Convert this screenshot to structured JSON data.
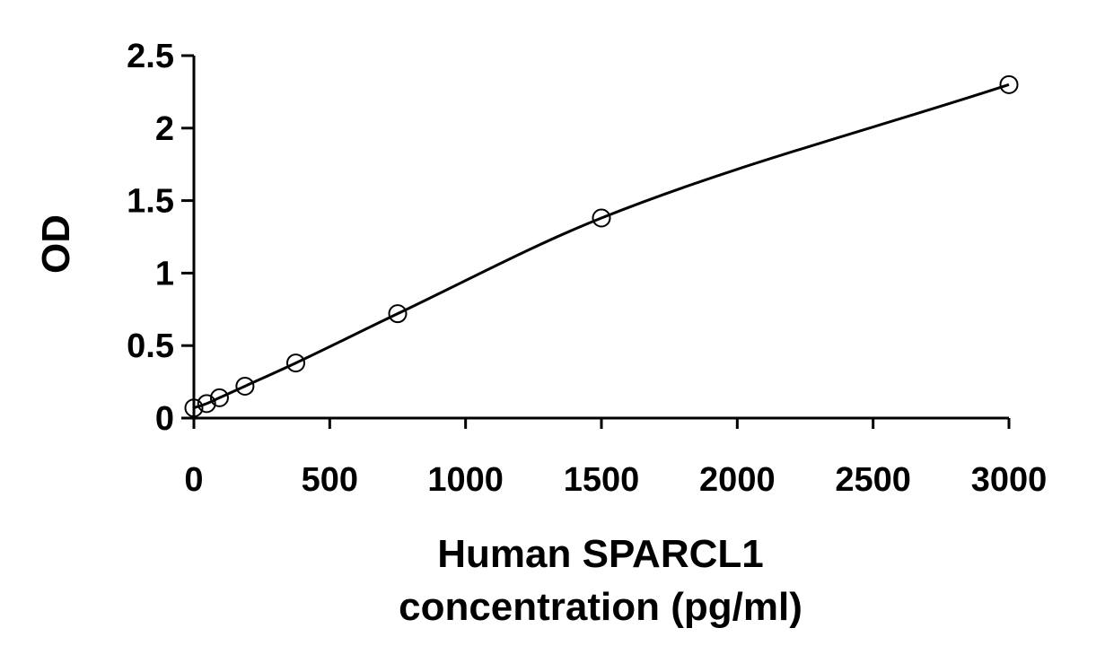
{
  "chart_data": {
    "type": "scatter",
    "title": "",
    "xlabel_lines": [
      "Human SPARCL1",
      "concentration (pg/ml)"
    ],
    "ylabel": "OD",
    "xlim": [
      0,
      3000
    ],
    "ylim": [
      0,
      2.5
    ],
    "x_ticks": [
      0,
      500,
      1000,
      1500,
      2000,
      2500,
      3000
    ],
    "x_tick_labels": [
      "0",
      "500",
      "1000",
      "1500",
      "2000",
      "2500",
      "3000"
    ],
    "y_ticks": [
      0,
      0.5,
      1,
      1.5,
      2,
      2.5
    ],
    "y_tick_labels": [
      "0",
      "0.5",
      "1",
      "1.5",
      "2",
      "2.5"
    ],
    "grid": false,
    "legend": "none",
    "series": [
      {
        "marker": "open-circle",
        "trendline": "fitted curve",
        "x": [
          0,
          47,
          94,
          188,
          375,
          750,
          1500,
          3000
        ],
        "y": [
          0.07,
          0.1,
          0.14,
          0.22,
          0.38,
          0.72,
          1.38,
          2.3
        ]
      }
    ],
    "colors": {
      "axis": "#000000",
      "curve": "#000000",
      "marker_stroke": "#000000",
      "marker_fill": "#ffffff"
    }
  }
}
